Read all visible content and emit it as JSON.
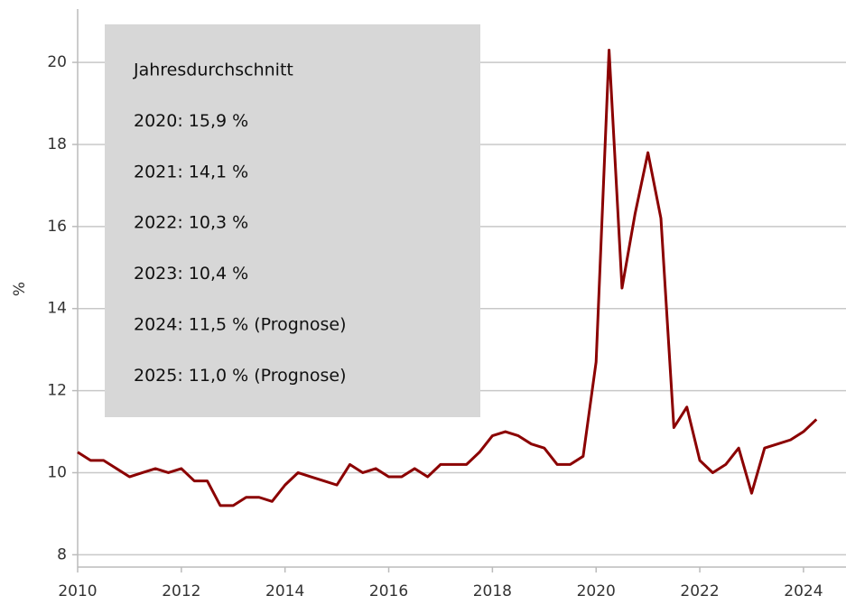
{
  "chart_data": {
    "type": "line",
    "y_label": "%",
    "annotation": [
      "Jahresdurchschnitt",
      "2020: 15,9 %",
      "2021: 14,1 %",
      "2022: 10,3 %",
      "2023: 10,4 %",
      "2024: 11,5 % (Prognose)",
      "2025: 11,0 % (Prognose)"
    ],
    "x": [
      2010,
      2010.25,
      2010.5,
      2010.75,
      2011,
      2011.25,
      2011.5,
      2011.75,
      2012,
      2012.25,
      2012.5,
      2012.75,
      2013,
      2013.25,
      2013.5,
      2013.75,
      2014,
      2014.25,
      2014.5,
      2014.75,
      2015,
      2015.25,
      2015.5,
      2015.75,
      2016,
      2016.25,
      2016.5,
      2016.75,
      2017,
      2017.25,
      2017.5,
      2017.75,
      2018,
      2018.25,
      2018.5,
      2018.75,
      2019,
      2019.25,
      2019.5,
      2019.75,
      2020,
      2020.25,
      2020.5,
      2020.75,
      2021,
      2021.25,
      2021.5,
      2021.75,
      2022,
      2022.25,
      2022.5,
      2022.75,
      2023,
      2023.25,
      2023.5,
      2023.75,
      2024,
      2024.25
    ],
    "series": [
      {
        "name": null,
        "color": "#8b0000",
        "values": [
          10.5,
          10.3,
          10.3,
          10.1,
          9.9,
          10.0,
          10.1,
          10.0,
          10.1,
          9.8,
          9.8,
          9.2,
          9.2,
          9.4,
          9.4,
          9.3,
          9.7,
          10.0,
          9.9,
          9.8,
          9.7,
          10.2,
          10.0,
          10.1,
          9.9,
          9.9,
          10.1,
          9.9,
          10.2,
          10.2,
          10.2,
          10.5,
          10.9,
          11.0,
          10.9,
          10.7,
          10.6,
          10.2,
          10.2,
          10.4,
          12.7,
          20.3,
          14.5,
          16.3,
          17.8,
          16.2,
          11.1,
          11.6,
          10.3,
          10.0,
          10.2,
          10.6,
          9.5,
          10.6,
          10.7,
          10.8,
          11.0,
          11.3
        ]
      }
    ],
    "xlim": [
      2010,
      2024.82
    ],
    "xticks": [
      2010,
      2012,
      2014,
      2016,
      2018,
      2020,
      2022,
      2024
    ],
    "ylim": [
      7.7,
      21.3
    ],
    "yticks": [
      8,
      10,
      12,
      14,
      16,
      18,
      20
    ],
    "grid": true
  }
}
